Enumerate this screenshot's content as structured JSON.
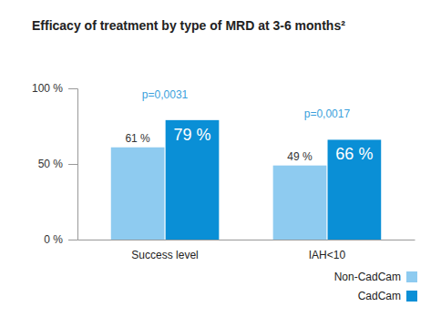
{
  "chart_data": {
    "type": "bar",
    "title": "Efficacy of treatment by type of MRD at 3-6 months²",
    "categories": [
      "Success level",
      "IAH<10"
    ],
    "series": [
      {
        "name": "Non-CadCam",
        "color": "#8ecbf0",
        "values": [
          61,
          49
        ],
        "value_labels": [
          "61 %",
          "49 %"
        ]
      },
      {
        "name": "CadCam",
        "color": "#0a8fd6",
        "values": [
          79,
          66
        ],
        "value_labels": [
          "79 %",
          "66 %"
        ]
      }
    ],
    "annotations": [
      "p=0,0031",
      "p=0,0017"
    ],
    "ylim": [
      0,
      100
    ],
    "yticks": [
      {
        "value": 0,
        "label": "0 %"
      },
      {
        "value": 50,
        "label": "50 %"
      },
      {
        "value": 100,
        "label": "100 %"
      }
    ],
    "grid": false,
    "legend": "lower right",
    "data_labels": true
  }
}
